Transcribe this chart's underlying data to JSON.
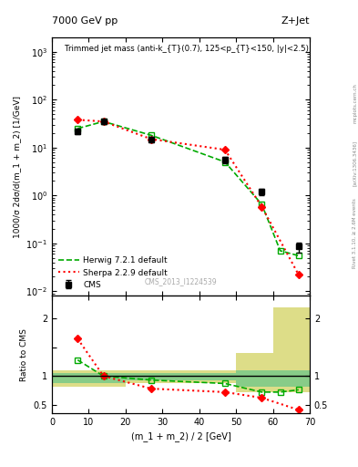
{
  "title_left": "7000 GeV pp",
  "title_right": "Z+Jet",
  "annotation": "Trimmed jet mass (anti-k_{T}(0.7), 125<p_{T}<150, |y|<2.5)",
  "watermark": "CMS_2013_I1224539",
  "ylabel_main": "1000/σ 2dσ/d(m_1 + m_2) [1/GeV]",
  "ylabel_ratio": "Ratio to CMS",
  "xlabel": "(m_1 + m_2) / 2 [GeV]",
  "xlim": [
    0,
    70
  ],
  "ylim_main": [
    0.008,
    2000
  ],
  "ylim_ratio": [
    0.35,
    2.4
  ],
  "cms_x": [
    7,
    14,
    27,
    47,
    57,
    67
  ],
  "cms_y": [
    22,
    35,
    15,
    5.5,
    1.2,
    0.085
  ],
  "cms_yerr_low": [
    3,
    4,
    2,
    0.8,
    0.2,
    0.02
  ],
  "cms_yerr_high": [
    3,
    4,
    2,
    0.8,
    0.2,
    0.02
  ],
  "herwig_x": [
    7,
    14,
    27,
    47,
    57,
    62,
    67
  ],
  "herwig_y": [
    25,
    35,
    18,
    5.0,
    0.65,
    0.07,
    0.055
  ],
  "sherpa_x": [
    7,
    14,
    27,
    47,
    57,
    67
  ],
  "sherpa_y": [
    38,
    35,
    15,
    9.0,
    0.58,
    0.022
  ],
  "ratio_herwig_x": [
    7,
    14,
    27,
    47,
    57,
    62,
    67
  ],
  "ratio_herwig_y": [
    1.28,
    1.0,
    0.93,
    0.87,
    0.72,
    0.72,
    0.76
  ],
  "ratio_sherpa_x": [
    7,
    14,
    27,
    47,
    57,
    67
  ],
  "ratio_sherpa_y": [
    1.65,
    1.0,
    0.78,
    0.72,
    0.62,
    0.41
  ],
  "band_edges": [
    0,
    10,
    20,
    30,
    40,
    50,
    60,
    70
  ],
  "band_inner_low": [
    0.88,
    0.88,
    0.92,
    0.92,
    0.92,
    0.82,
    0.82
  ],
  "band_inner_high": [
    1.05,
    1.05,
    1.05,
    1.05,
    1.05,
    1.1,
    1.1
  ],
  "band_outer_low": [
    0.82,
    0.82,
    0.88,
    0.88,
    0.88,
    0.72,
    0.72
  ],
  "band_outer_high": [
    1.1,
    1.1,
    1.1,
    1.1,
    1.1,
    1.4,
    2.2
  ],
  "color_cms": "#000000",
  "color_herwig": "#00aa00",
  "color_sherpa": "#ff0000",
  "color_band_inner": "#88cc88",
  "color_band_outer": "#dddd88",
  "right_label1": "mcplots.cern.ch",
  "right_label2": "[arXiv:1306.3436]",
  "right_label3": "Rivet 3.1.10, ≥ 2.6M events"
}
